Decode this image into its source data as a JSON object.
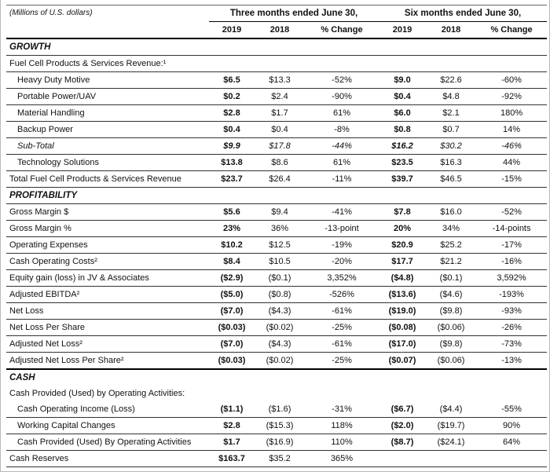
{
  "page": {
    "units_label": "(Millions of U.S. dollars)"
  },
  "table": {
    "groups": [
      {
        "label": "Three months ended June 30,"
      },
      {
        "label": "Six months ended June 30,"
      }
    ],
    "columns": [
      "2019",
      "2018",
      "% Change",
      "2019",
      "2018",
      "% Change"
    ],
    "rows": [
      {
        "type": "section",
        "label": "GROWTH",
        "border": "thin"
      },
      {
        "type": "label",
        "label": "Fuel Cell Products & Services Revenue:¹",
        "border": "thin"
      },
      {
        "type": "data",
        "indent": 1,
        "label": "Heavy Duty Motive",
        "border": "thin",
        "values": [
          "$6.5",
          "$13.3",
          "-52%",
          "$9.0",
          "$22.6",
          "-60%"
        ]
      },
      {
        "type": "data",
        "indent": 1,
        "label": "Portable Power/UAV",
        "border": "thin",
        "values": [
          "$0.2",
          "$2.4",
          "-90%",
          "$0.4",
          "$4.8",
          "-92%"
        ]
      },
      {
        "type": "data",
        "indent": 1,
        "label": "Material Handling",
        "border": "thin",
        "values": [
          "$2.8",
          "$1.7",
          "61%",
          "$6.0",
          "$2.1",
          "180%"
        ]
      },
      {
        "type": "data",
        "indent": 1,
        "label": "Backup Power",
        "border": "thin",
        "values": [
          "$0.4",
          "$0.4",
          "-8%",
          "$0.8",
          "$0.7",
          "14%"
        ]
      },
      {
        "type": "data",
        "indent": 1,
        "label": "Sub-Total",
        "italic": true,
        "border": "thin",
        "values": [
          "$9.9",
          "$17.8",
          "-44%",
          "$16.2",
          "$30.2",
          "-46%"
        ]
      },
      {
        "type": "data",
        "indent": 1,
        "label": "Technology Solutions",
        "border": "thin",
        "values": [
          "$13.8",
          "$8.6",
          "61%",
          "$23.5",
          "$16.3",
          "44%"
        ]
      },
      {
        "type": "data",
        "indent": 0,
        "label": "Total Fuel Cell Products & Services Revenue",
        "border": "thin",
        "values": [
          "$23.7",
          "$26.4",
          "-11%",
          "$39.7",
          "$46.5",
          "-15%"
        ]
      },
      {
        "type": "section",
        "label": "PROFITABILITY",
        "border": "thin"
      },
      {
        "type": "data",
        "indent": 0,
        "label": "Gross Margin $",
        "border": "thin",
        "values": [
          "$5.6",
          "$9.4",
          "-41%",
          "$7.8",
          "$16.0",
          "-52%"
        ]
      },
      {
        "type": "data",
        "indent": 0,
        "label": "Gross Margin %",
        "border": "thin",
        "values": [
          "23%",
          "36%",
          "-13-point",
          "20%",
          "34%",
          "-14-points"
        ]
      },
      {
        "type": "data",
        "indent": 0,
        "label": "Operating Expenses",
        "border": "thin",
        "values": [
          "$10.2",
          "$12.5",
          "-19%",
          "$20.9",
          "$25.2",
          "-17%"
        ]
      },
      {
        "type": "data",
        "indent": 0,
        "label": "Cash Operating Costs²",
        "border": "thin",
        "values": [
          "$8.4",
          "$10.5",
          "-20%",
          "$17.7",
          "$21.2",
          "-16%"
        ]
      },
      {
        "type": "data",
        "indent": 0,
        "label": "Equity gain (loss) in JV & Associates",
        "border": "thin",
        "values": [
          "($2.9)",
          "($0.1)",
          "3,352%",
          "($4.8)",
          "($0.1)",
          "3,592%"
        ]
      },
      {
        "type": "data",
        "indent": 0,
        "label": "Adjusted EBITDA²",
        "border": "thin",
        "values": [
          "($5.0)",
          "($0.8)",
          "-526%",
          "($13.6)",
          "($4.6)",
          "-193%"
        ]
      },
      {
        "type": "data",
        "indent": 0,
        "label": "Net Loss",
        "border": "thin",
        "values": [
          "($7.0)",
          "($4.3)",
          "-61%",
          "($19.0)",
          "($9.8)",
          "-93%"
        ]
      },
      {
        "type": "data",
        "indent": 0,
        "label": "Net Loss Per Share",
        "border": "thin",
        "values": [
          "($0.03)",
          "($0.02)",
          "-25%",
          "($0.08)",
          "($0.06)",
          "-26%"
        ]
      },
      {
        "type": "data",
        "indent": 0,
        "label": "Adjusted Net Loss²",
        "border": "thin",
        "values": [
          "($7.0)",
          "($4.3)",
          "-61%",
          "($17.0)",
          "($9.8)",
          "-73%"
        ]
      },
      {
        "type": "data",
        "indent": 0,
        "label": "Adjusted Net Loss Per Share²",
        "border": "thick",
        "values": [
          "($0.03)",
          "($0.02)",
          "-25%",
          "($0.07)",
          "($0.06)",
          "-13%"
        ]
      },
      {
        "type": "section",
        "label": "CASH",
        "border": "none"
      },
      {
        "type": "label",
        "label": "Cash Provided (Used) by Operating Activities:",
        "border": "none"
      },
      {
        "type": "data",
        "indent": 1,
        "label": "Cash Operating Income (Loss)",
        "border": "thin",
        "values": [
          "($1.1)",
          "($1.6)",
          "-31%",
          "($6.7)",
          "($4.4)",
          "-55%"
        ]
      },
      {
        "type": "data",
        "indent": 1,
        "label": "Working Capital Changes",
        "border": "thin",
        "values": [
          "$2.8",
          "($15.3)",
          "118%",
          "($2.0)",
          "($19.7)",
          "90%"
        ]
      },
      {
        "type": "data",
        "indent": 1,
        "label": "Cash Provided (Used) By Operating Activities",
        "border": "thin",
        "values": [
          "$1.7",
          "($16.9)",
          "110%",
          "($8.7)",
          "($24.1)",
          "64%"
        ]
      },
      {
        "type": "data",
        "indent": 0,
        "label": "Cash Reserves",
        "border": "thin",
        "values": [
          "$163.7",
          "$35.2",
          "365%",
          "",
          "",
          ""
        ]
      }
    ]
  }
}
